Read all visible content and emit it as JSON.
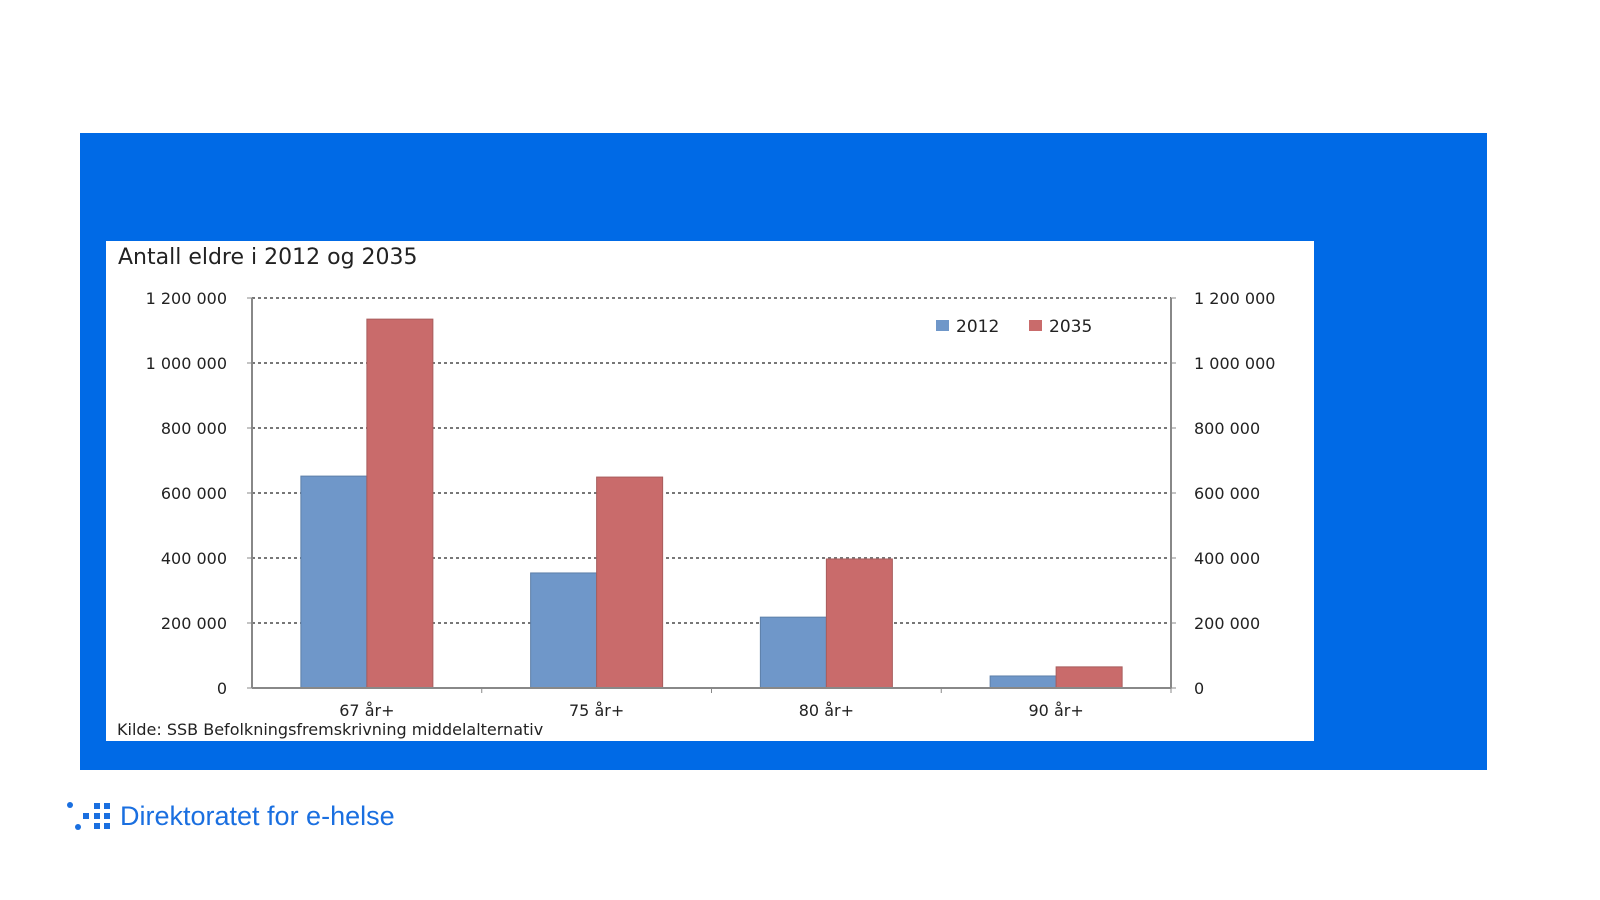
{
  "chart_data": {
    "type": "bar",
    "title": "Antall eldre i 2012 og 2035",
    "categories": [
      "67 år+",
      "75 år+",
      "80 år+",
      "90 år+"
    ],
    "series": [
      {
        "name": "2012",
        "color": "#6f97c9",
        "values": [
          652000,
          354000,
          218000,
          37000
        ]
      },
      {
        "name": "2035",
        "color": "#c96b6b",
        "values": [
          1135000,
          649000,
          397000,
          65000
        ]
      }
    ],
    "ylim": [
      0,
      1200000
    ],
    "yticks": [
      0,
      200000,
      400000,
      600000,
      800000,
      1000000,
      1200000
    ],
    "ytick_labels": [
      "0",
      "200 000",
      "400 000",
      "600 000",
      "800 000",
      "1 000 000",
      "1 200 000"
    ],
    "grid": true,
    "legend": "top-right",
    "source": "Kilde: SSB Befolkningsfremskrivning middelalternativ"
  },
  "footer": {
    "logo_text": "Direktoratet for e-helse",
    "brand_color": "#006ae6"
  }
}
